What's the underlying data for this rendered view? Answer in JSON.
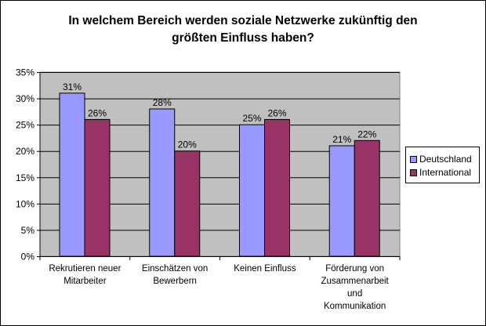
{
  "title": "In welchem Bereich werden soziale Netzwerke zukünftig den größten Einfluss haben?",
  "colors": {
    "Deutschland": "#9999ff",
    "International": "#993366",
    "plot_bg": "#c0c0c0"
  },
  "chart_data": {
    "type": "bar",
    "title": "In welchem Bereich werden soziale Netzwerke zukünftig den größten Einfluss haben?",
    "categories": [
      [
        "Rekrutieren neuer",
        "Mitarbeiter"
      ],
      [
        "Einschätzen von",
        "Bewerbern"
      ],
      [
        "Keinen Einfluss"
      ],
      [
        "Förderung von",
        "Zusammenarbeit",
        "und",
        "Kommunikation"
      ]
    ],
    "series": [
      {
        "name": "Deutschland",
        "values": [
          31,
          28,
          25,
          21
        ],
        "labels": [
          "31%",
          "28%",
          "25%",
          "21%"
        ]
      },
      {
        "name": "International",
        "values": [
          26,
          20,
          26,
          22
        ],
        "labels": [
          "26%",
          "20%",
          "26%",
          "22%"
        ]
      }
    ],
    "ylim": [
      0,
      35
    ],
    "yticks": [
      0,
      5,
      10,
      15,
      20,
      25,
      30,
      35
    ],
    "ytick_labels": [
      "0%",
      "5%",
      "10%",
      "15%",
      "20%",
      "25%",
      "30%",
      "35%"
    ],
    "grid": true,
    "legend_position": "right"
  }
}
